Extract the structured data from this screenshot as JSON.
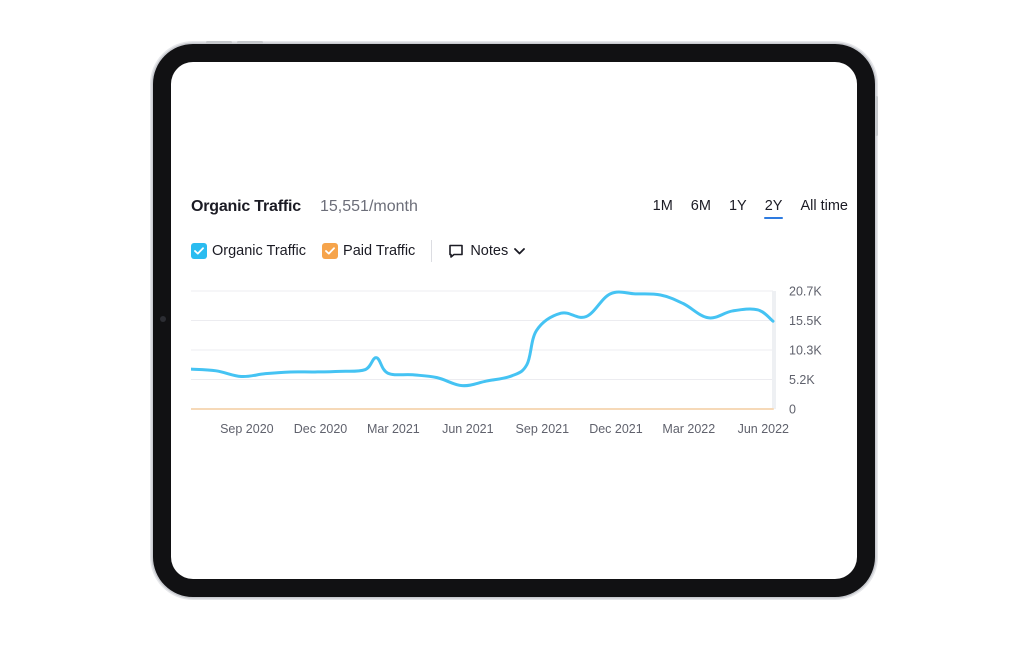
{
  "widget": {
    "title": "Organic Traffic",
    "title_value": "15,551/month"
  },
  "periods": [
    {
      "label": "1M",
      "active": false
    },
    {
      "label": "6M",
      "active": false
    },
    {
      "label": "1Y",
      "active": false
    },
    {
      "label": "2Y",
      "active": true
    },
    {
      "label": "All time",
      "active": false
    }
  ],
  "legend": {
    "items": [
      {
        "label": "Organic Traffic",
        "color": "#2bbcf0",
        "checked": true
      },
      {
        "label": "Paid Traffic",
        "color": "#f6a44b",
        "checked": true
      }
    ],
    "notes_label": "Notes"
  },
  "chart_data": {
    "type": "line",
    "x_ticks": [
      "Sep 2020",
      "Dec 2020",
      "Mar 2021",
      "Jun 2021",
      "Sep 2021",
      "Dec 2021",
      "Mar 2022",
      "Jun 2022"
    ],
    "y_ticks": [
      "20.7K",
      "15.5K",
      "10.3K",
      "5.2K",
      "0"
    ],
    "ylim": [
      0,
      20700
    ],
    "grid": true,
    "series": [
      {
        "name": "Organic Traffic",
        "color": "#45c3f3",
        "x": [
          "2020-07",
          "2020-08",
          "2020-09",
          "2020-10",
          "2020-11",
          "2020-12",
          "2021-01",
          "2021-02",
          "2021-02-15",
          "2021-03",
          "2021-04",
          "2021-05",
          "2021-06",
          "2021-07",
          "2021-08",
          "2021-08-20",
          "2021-09",
          "2021-10",
          "2021-11",
          "2021-12",
          "2022-01",
          "2022-02",
          "2022-03",
          "2022-04",
          "2022-05",
          "2022-06",
          "2022-06-20"
        ],
        "values": [
          7000,
          6700,
          5700,
          6200,
          6500,
          6500,
          6600,
          6900,
          9000,
          6300,
          6000,
          5500,
          4100,
          4900,
          5800,
          7800,
          13800,
          16800,
          16200,
          20200,
          20200,
          20000,
          18500,
          16000,
          17200,
          17400,
          15400
        ]
      },
      {
        "name": "Paid Traffic",
        "color": "#f6d9b8",
        "x": [
          "2020-07",
          "2022-06-20"
        ],
        "values": [
          0,
          0
        ]
      }
    ]
  }
}
